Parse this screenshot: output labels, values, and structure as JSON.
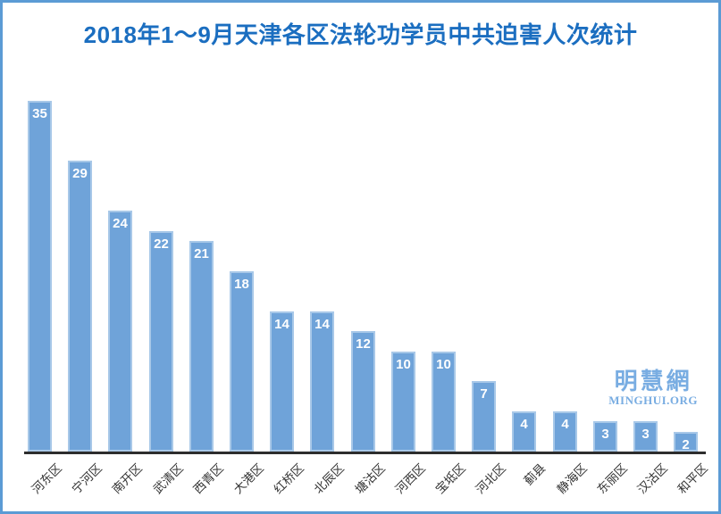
{
  "frame": {
    "border_color": "#5b9bd5",
    "background_color": "#ffffff"
  },
  "header": {
    "title": "2018年1～9月天津各区法轮功学员中共迫害人次统计",
    "title_color": "#1b6ec0"
  },
  "watermark": {
    "cjk_text": "明慧網",
    "latin_text": "MINGHUI.ORG",
    "color": "#79ade2"
  },
  "chart_data": {
    "type": "bar",
    "title": "2018年1～9月天津各区法轮功学员中共迫害人次统计",
    "categories": [
      "河东区",
      "宁河区",
      "南开区",
      "武清区",
      "西青区",
      "大港区",
      "红桥区",
      "北辰区",
      "塘沽区",
      "河西区",
      "宝坻区",
      "河北区",
      "蓟县",
      "静海区",
      "东丽区",
      "汉沽区",
      "和平区"
    ],
    "values": [
      35,
      29,
      24,
      22,
      21,
      18,
      14,
      14,
      12,
      10,
      10,
      7,
      4,
      4,
      3,
      3,
      2
    ],
    "xlabel": "",
    "ylabel": "",
    "ylim": [
      0,
      36
    ],
    "grid": false,
    "legend": false,
    "value_label_position": "inside-top",
    "category_label_rotation_deg": -45,
    "bar_fill_color": "#6fa3d9",
    "bar_border_color": "#a8c8e8",
    "value_label_color": "#ffffff",
    "axis_line_color": "#2d2d2d",
    "category_label_color": "#333333"
  }
}
